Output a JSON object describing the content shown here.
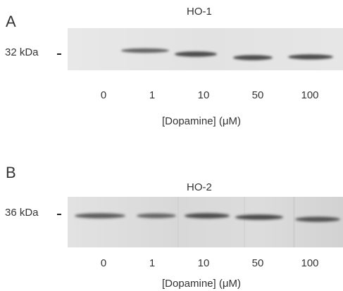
{
  "panels": [
    {
      "letter": "A",
      "protein": "HO-1",
      "mw_marker": "32 kDa",
      "lanes": [
        "0",
        "1",
        "10",
        "50",
        "100"
      ],
      "x_title": "[Dopamine]  (μM)"
    },
    {
      "letter": "B",
      "protein": "HO-2",
      "mw_marker": "36 kDa",
      "lanes": [
        "0",
        "1",
        "10",
        "50",
        "100"
      ],
      "x_title": "[Dopamine]  (μM)"
    }
  ],
  "colors": {
    "blot_a_background": "#e4e4e4",
    "blot_b_background": "#dadada",
    "band": "#3a3a3a"
  }
}
